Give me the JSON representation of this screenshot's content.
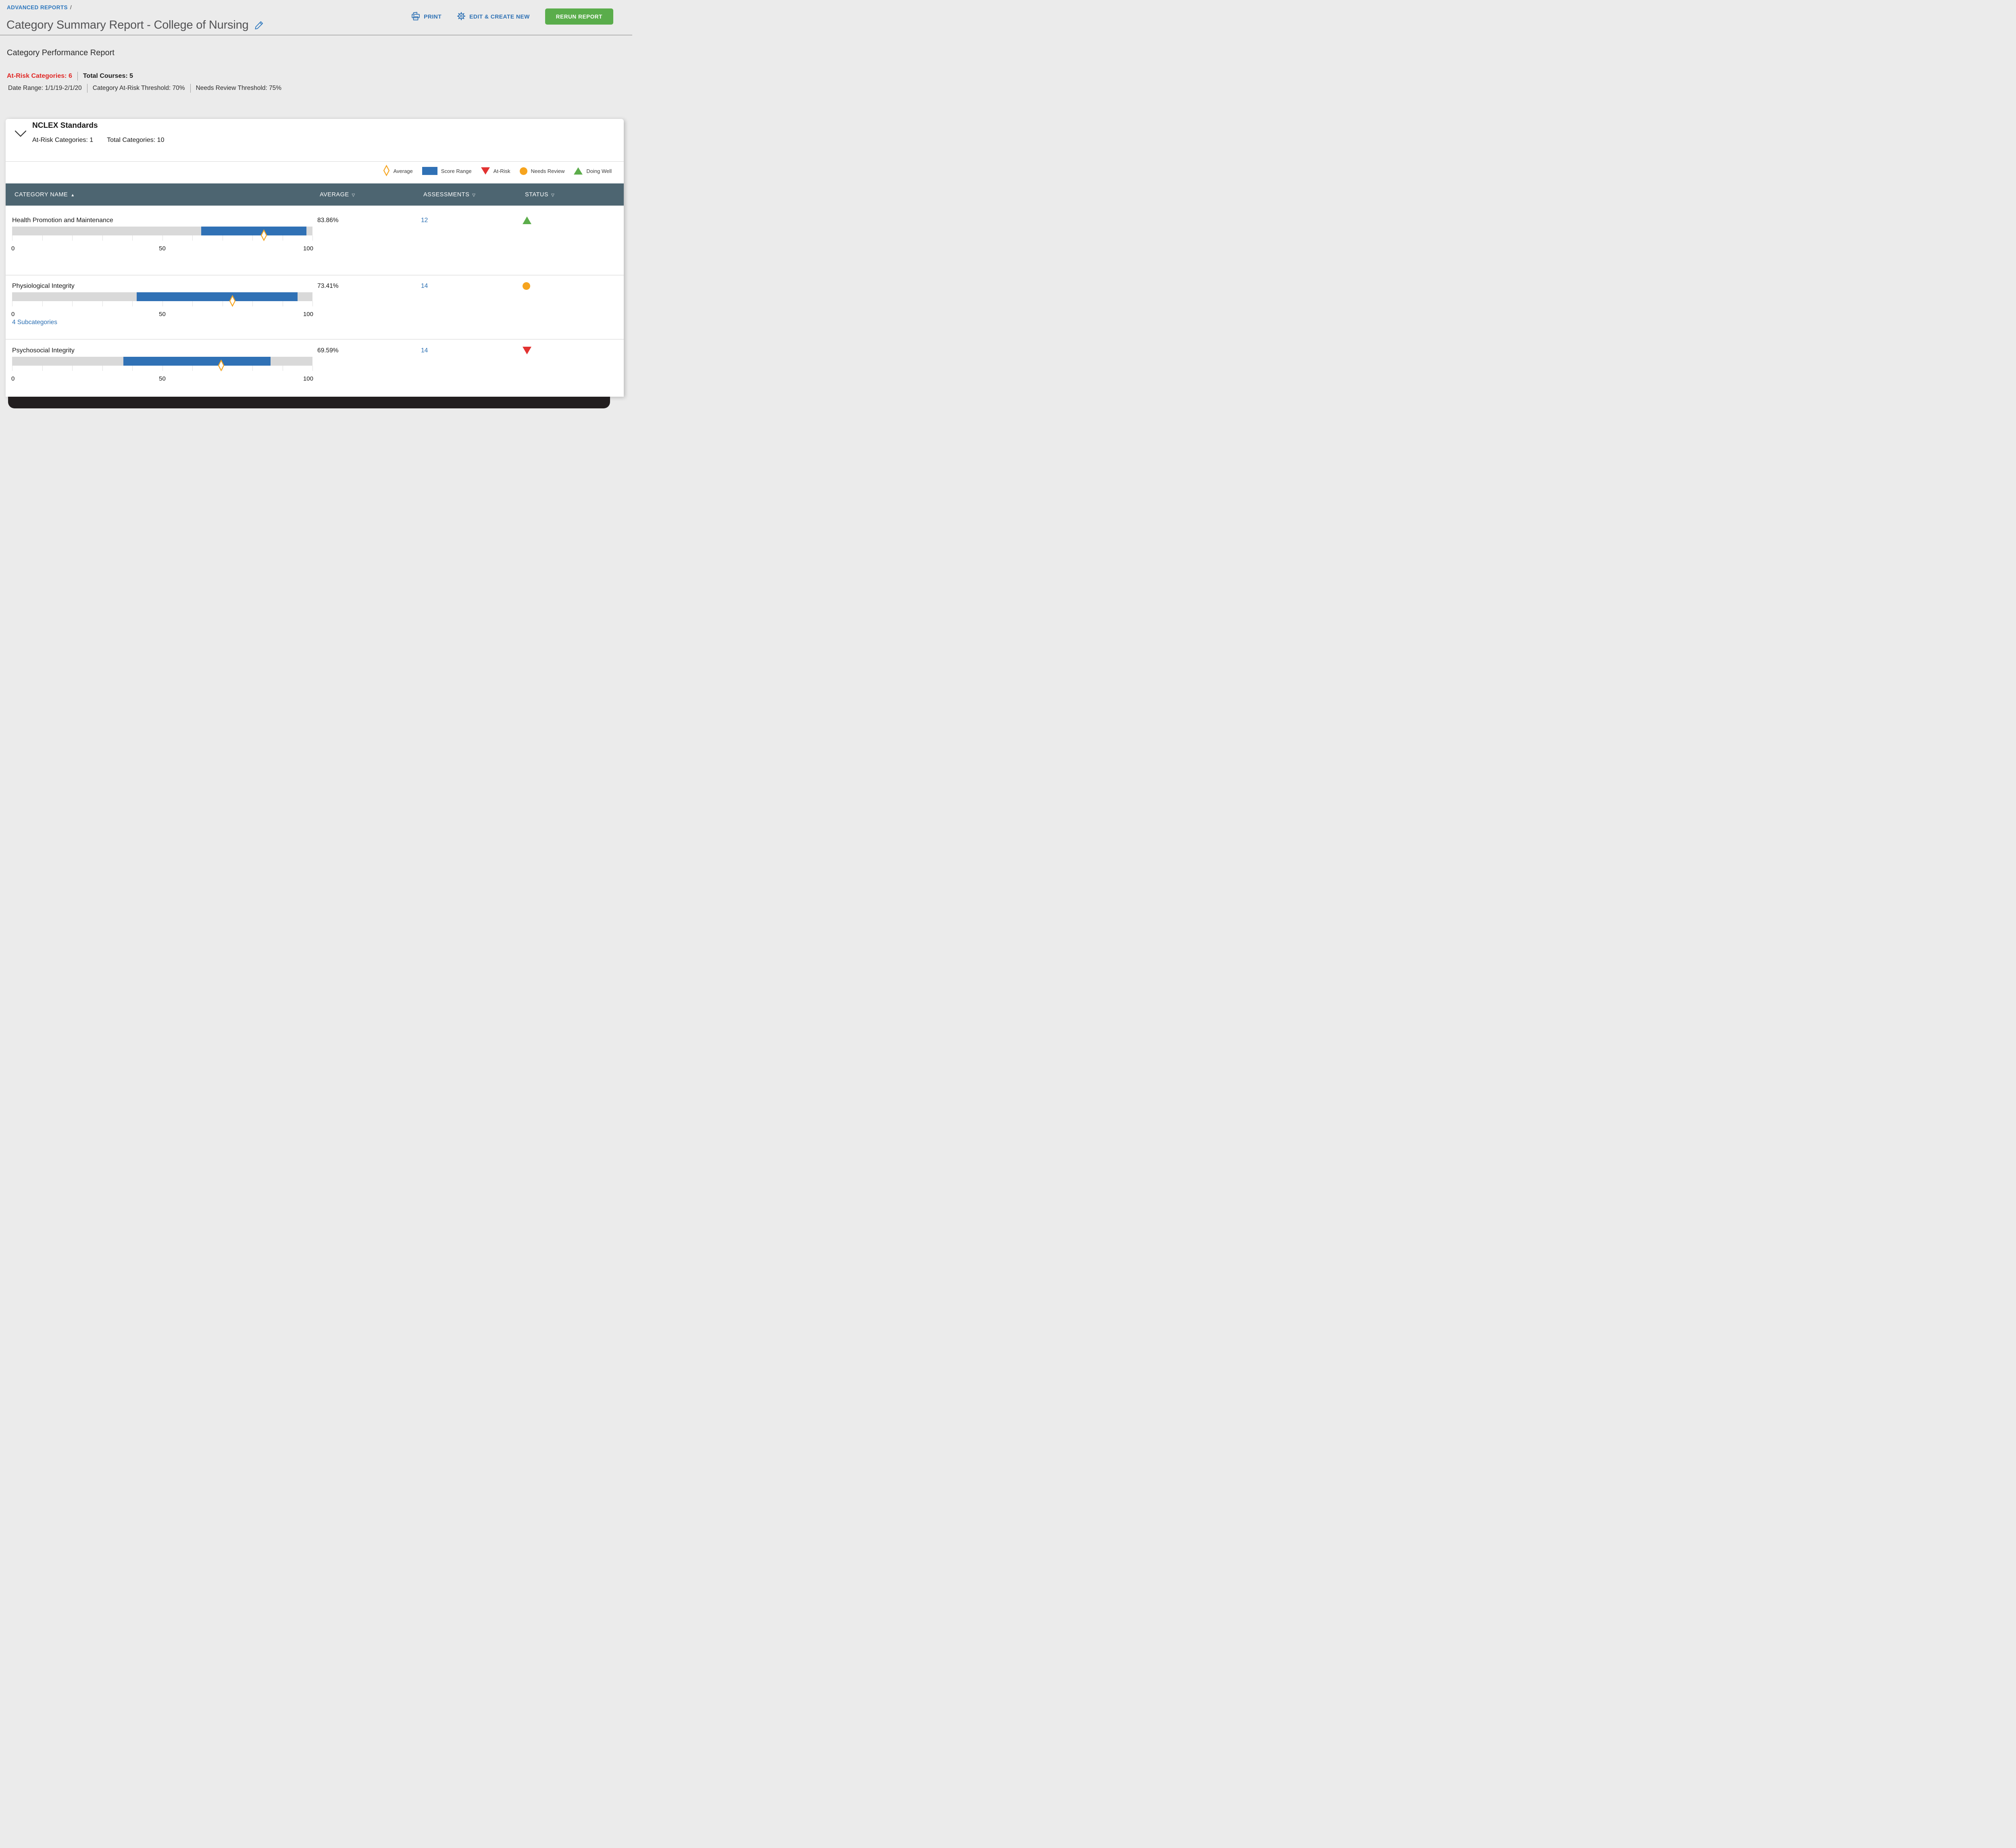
{
  "header": {
    "breadcrumb": "ADVANCED REPORTS",
    "breadcrumb_separator": "/",
    "title": "Category Summary Report - College of Nursing",
    "print_label": "PRINT",
    "edit_label": "EDIT & CREATE NEW",
    "rerun_label": "RERUN REPORT"
  },
  "summary": {
    "heading": "Category Performance Report",
    "at_risk_label": "At-Risk Categories:",
    "at_risk_count": "6",
    "total_courses_label": "Total Courses:",
    "total_courses_count": "5",
    "date_range": "Date Range: 1/1/19-2/1/20",
    "at_risk_threshold": "Category At-Risk Threshold: 70%",
    "needs_review_threshold": "Needs Review Threshold: 75%"
  },
  "group": {
    "name": "NCLEX Standards",
    "at_risk_categories": "At-Risk Categories: 1",
    "total_categories": "Total Categories: 10"
  },
  "legend": {
    "average": "Average",
    "score_range": "Score Range",
    "at_risk": "At-Risk",
    "needs_review": "Needs Review",
    "doing_well": "Doing Well"
  },
  "table": {
    "columns": {
      "category": "CATEGORY NAME",
      "average": "AVERAGE",
      "assessments": "ASSESSMENTS",
      "status": "STATUS"
    },
    "sort_asc_glyph": "▲",
    "sort_glyph": "▽",
    "axis": {
      "min": "0",
      "mid": "50",
      "max": "100"
    },
    "rows": [
      {
        "name": "Health Promotion and Maintenance",
        "average": "83.86%",
        "average_value": 83.86,
        "range_low": 63,
        "range_high": 98,
        "assessments": "12",
        "status": "doing-well"
      },
      {
        "name": "Physiological Integrity",
        "average": "73.41%",
        "average_value": 73.41,
        "range_low": 41.5,
        "range_high": 95,
        "assessments": "14",
        "status": "needs-review",
        "subcategories_label": "4 Subcategories"
      },
      {
        "name": "Psychosocial Integrity",
        "average": "69.59%",
        "average_value": 69.59,
        "range_low": 37,
        "range_high": 86,
        "assessments": "14",
        "status": "at-risk"
      }
    ]
  },
  "colors": {
    "link_blue": "#2b6fb3",
    "bar_blue": "#3071b5",
    "track_gray": "#d9d9d9",
    "table_header_slate": "#4d6571",
    "accent_orange": "#f6a41e",
    "status_red": "#e23231",
    "status_green": "#5cad4b",
    "at_risk_text_red": "#e02826",
    "button_green": "#5aad4b"
  }
}
